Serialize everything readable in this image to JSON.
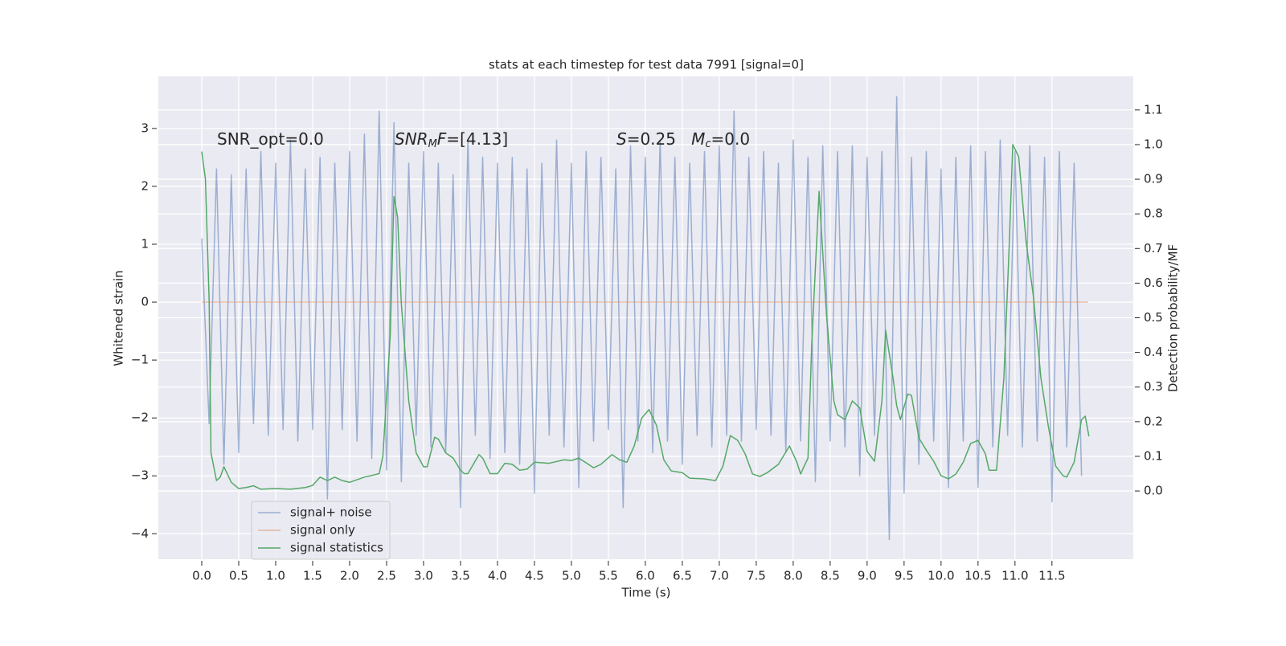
{
  "chart_data": {
    "type": "line",
    "title": "stats at each timestep for test data 7991 [signal=0]",
    "x_label": "Time (s)",
    "y_label": "Whitened strain",
    "y2_label": "Detection probability/MF",
    "annotations": [
      {
        "parts": [
          "SNR_opt=0.0"
        ]
      },
      {
        "parts": [
          "SNR",
          "M",
          "F",
          "=[4.13]"
        ]
      },
      {
        "parts": [
          "S",
          "=0.25   ",
          "M",
          "c",
          "=0.0"
        ]
      }
    ],
    "grid": true,
    "legend": "lower left",
    "xlim": [
      -0.587,
      12.6
    ],
    "ylim": [
      -4.44,
      3.9
    ],
    "y2lim": [
      -0.197,
      1.197
    ],
    "xticks": [
      {
        "value": 0,
        "label": "0.0"
      },
      0.5,
      {
        "value": 1,
        "label": "1.0"
      },
      1.5,
      {
        "value": 2,
        "label": "2.0"
      },
      2.5,
      {
        "value": 3,
        "label": "3.0"
      },
      3.5,
      {
        "value": 4,
        "label": "4.0"
      },
      4.5,
      {
        "value": 5,
        "label": "5.0"
      },
      5.5,
      {
        "value": 6,
        "label": "6.0"
      },
      6.5,
      {
        "value": 7,
        "label": "7.0"
      },
      7.5,
      {
        "value": 8,
        "label": "8.0"
      },
      8.5,
      {
        "value": 9,
        "label": "9.0"
      },
      9.5,
      {
        "value": 10,
        "label": "10.0"
      },
      10.5,
      {
        "value": 11,
        "label": "11.0"
      },
      11.5
    ],
    "yticks": [
      {
        "value": -4,
        "label": "−4"
      },
      {
        "value": -3,
        "label": "−3"
      },
      {
        "value": -2,
        "label": "−2"
      },
      {
        "value": -1,
        "label": "−1"
      },
      0,
      1,
      2,
      3
    ],
    "y2ticks": [
      {
        "value": 0,
        "label": "0.0"
      },
      0.1,
      0.2,
      0.3,
      0.4,
      0.5,
      0.6,
      0.7,
      0.8,
      0.9,
      {
        "value": 1,
        "label": "1.0"
      },
      1.1
    ],
    "series": [
      {
        "name": "signal+ noise",
        "color": "#4c72b0",
        "opacity": 0.5,
        "x": [
          0,
          0.1,
          0.2,
          0.3,
          0.4,
          0.5,
          0.6,
          0.7,
          0.8,
          0.9,
          1,
          1.1,
          1.2,
          1.3,
          1.4,
          1.5,
          1.6,
          1.7,
          1.8,
          1.9,
          2,
          2.1,
          2.2,
          2.3,
          2.4,
          2.5,
          2.6,
          2.7,
          2.8,
          2.9,
          3,
          3.1,
          3.2,
          3.3,
          3.4,
          3.5,
          3.6,
          3.7,
          3.8,
          3.9,
          4,
          4.1,
          4.2,
          4.3,
          4.4,
          4.5,
          4.6,
          4.7,
          4.8,
          4.9,
          5,
          5.1,
          5.2,
          5.3,
          5.4,
          5.5,
          5.6,
          5.7,
          5.8,
          5.9,
          6,
          6.1,
          6.2,
          6.3,
          6.4,
          6.5,
          6.6,
          6.7,
          6.8,
          6.9,
          7,
          7.1,
          7.2,
          7.3,
          7.4,
          7.5,
          7.6,
          7.7,
          7.8,
          7.9,
          8,
          8.1,
          8.2,
          8.3,
          8.4,
          8.5,
          8.6,
          8.7,
          8.8,
          8.9,
          9,
          9.1,
          9.2,
          9.3,
          9.4,
          9.5,
          9.6,
          9.7,
          9.8,
          9.9,
          10,
          10.1,
          10.2,
          10.3,
          10.4,
          10.5,
          10.6,
          10.7,
          10.8,
          10.9,
          11,
          11.1,
          11.2,
          11.3,
          11.4,
          11.5,
          11.6,
          11.7,
          11.8,
          11.9
        ],
        "values": [
          1.1,
          -2.1,
          2.3,
          -2.8,
          2.2,
          -2.6,
          2.3,
          -2.1,
          2.6,
          -2.3,
          2.4,
          -2.2,
          2.8,
          -2.4,
          2.3,
          -2.2,
          2.5,
          -3.4,
          2.4,
          -2.2,
          2.6,
          -2.4,
          2.9,
          -2.7,
          3.3,
          -2.9,
          3.1,
          -3.1,
          2.4,
          -2.3,
          2.6,
          -2.5,
          2.4,
          -2.6,
          2.2,
          -3.55,
          2.8,
          -2.3,
          2.5,
          -2.7,
          2.4,
          -2.6,
          2.5,
          -2.8,
          2.3,
          -3.3,
          2.4,
          -2.3,
          2.8,
          -2.5,
          2.4,
          -3.2,
          2.6,
          -2.4,
          2.5,
          -2.2,
          2.3,
          -3.55,
          2.7,
          -2.4,
          2.5,
          -2.6,
          2.8,
          -2.4,
          2.5,
          -2.8,
          2.4,
          -2.3,
          2.6,
          -2.5,
          2.7,
          -2.3,
          3.3,
          -2.4,
          2.5,
          -2.2,
          2.6,
          -2.3,
          2.4,
          -2.6,
          2.8,
          -2.4,
          2.5,
          -3.1,
          2.7,
          -2.4,
          2.6,
          -2.5,
          2.7,
          -3.0,
          2.5,
          -2.3,
          2.6,
          -4.1,
          3.55,
          -3.3,
          2.5,
          -2.8,
          2.6,
          -2.4,
          2.3,
          -3.2,
          2.5,
          -2.4,
          2.7,
          -3.2,
          2.6,
          -2.5,
          2.8,
          -2.3,
          2.6,
          -2.5,
          2.7,
          -2.4,
          2.5,
          -3.45,
          2.6,
          -2.5,
          2.4,
          -3.0
        ]
      },
      {
        "name": "signal only",
        "color": "#dd8452",
        "opacity": 0.5,
        "x": [
          0,
          11.99
        ],
        "values": [
          0,
          0
        ]
      },
      {
        "name": "signal statistics",
        "color": "#55a868",
        "opacity": 1,
        "axis": "y2",
        "x": [
          0,
          0.05,
          0.1,
          0.125,
          0.2,
          0.25,
          0.3,
          0.4,
          0.5,
          0.6,
          0.7,
          0.8,
          1,
          1.2,
          1.4,
          1.5,
          1.6,
          1.7,
          1.8,
          1.9,
          2,
          2.2,
          2.3,
          2.4,
          2.45,
          2.55,
          2.6,
          2.65,
          2.7,
          2.8,
          2.9,
          3,
          3.05,
          3.15,
          3.2,
          3.3,
          3.4,
          3.5,
          3.55,
          3.6,
          3.75,
          3.8,
          3.9,
          4,
          4.1,
          4.2,
          4.3,
          4.4,
          4.5,
          4.7,
          4.9,
          5,
          5.1,
          5.3,
          5.4,
          5.55,
          5.65,
          5.75,
          5.85,
          5.95,
          6.05,
          6.15,
          6.25,
          6.35,
          6.5,
          6.6,
          6.8,
          6.95,
          7.05,
          7.15,
          7.25,
          7.35,
          7.45,
          7.55,
          7.65,
          7.8,
          7.95,
          8.05,
          8.1,
          8.2,
          8.25,
          8.35,
          8.45,
          8.55,
          8.6,
          8.7,
          8.8,
          8.9,
          9,
          9.1,
          9.2,
          9.25,
          9.35,
          9.4,
          9.45,
          9.55,
          9.6,
          9.7,
          9.8,
          9.9,
          10,
          10.1,
          10.2,
          10.3,
          10.4,
          10.5,
          10.6,
          10.65,
          10.75,
          10.85,
          10.92,
          10.97,
          11.05,
          11.15,
          11.25,
          11.35,
          11.45,
          11.55,
          11.65,
          11.7,
          11.8,
          11.9,
          11.95,
          12
        ],
        "values": [
          0.98,
          0.9,
          0.55,
          0.11,
          0.03,
          0.04,
          0.07,
          0.025,
          0.007,
          0.01,
          0.015,
          0.005,
          0.007,
          0.005,
          0.01,
          0.016,
          0.04,
          0.03,
          0.04,
          0.03,
          0.025,
          0.04,
          0.045,
          0.05,
          0.1,
          0.45,
          0.85,
          0.79,
          0.54,
          0.26,
          0.11,
          0.07,
          0.07,
          0.155,
          0.15,
          0.11,
          0.095,
          0.06,
          0.05,
          0.05,
          0.105,
          0.095,
          0.05,
          0.05,
          0.08,
          0.077,
          0.06,
          0.063,
          0.083,
          0.08,
          0.09,
          0.088,
          0.095,
          0.067,
          0.077,
          0.105,
          0.09,
          0.083,
          0.13,
          0.21,
          0.235,
          0.19,
          0.09,
          0.058,
          0.053,
          0.037,
          0.035,
          0.03,
          0.072,
          0.16,
          0.146,
          0.107,
          0.049,
          0.042,
          0.053,
          0.077,
          0.13,
          0.083,
          0.049,
          0.095,
          0.42,
          0.865,
          0.51,
          0.26,
          0.22,
          0.206,
          0.26,
          0.24,
          0.114,
          0.086,
          0.26,
          0.464,
          0.327,
          0.246,
          0.206,
          0.28,
          0.276,
          0.153,
          0.118,
          0.086,
          0.044,
          0.035,
          0.049,
          0.083,
          0.137,
          0.146,
          0.107,
          0.06,
          0.06,
          0.327,
          0.7,
          1.0,
          0.965,
          0.72,
          0.56,
          0.327,
          0.188,
          0.072,
          0.044,
          0.04,
          0.083,
          0.206,
          0.216,
          0.158
        ]
      }
    ]
  }
}
